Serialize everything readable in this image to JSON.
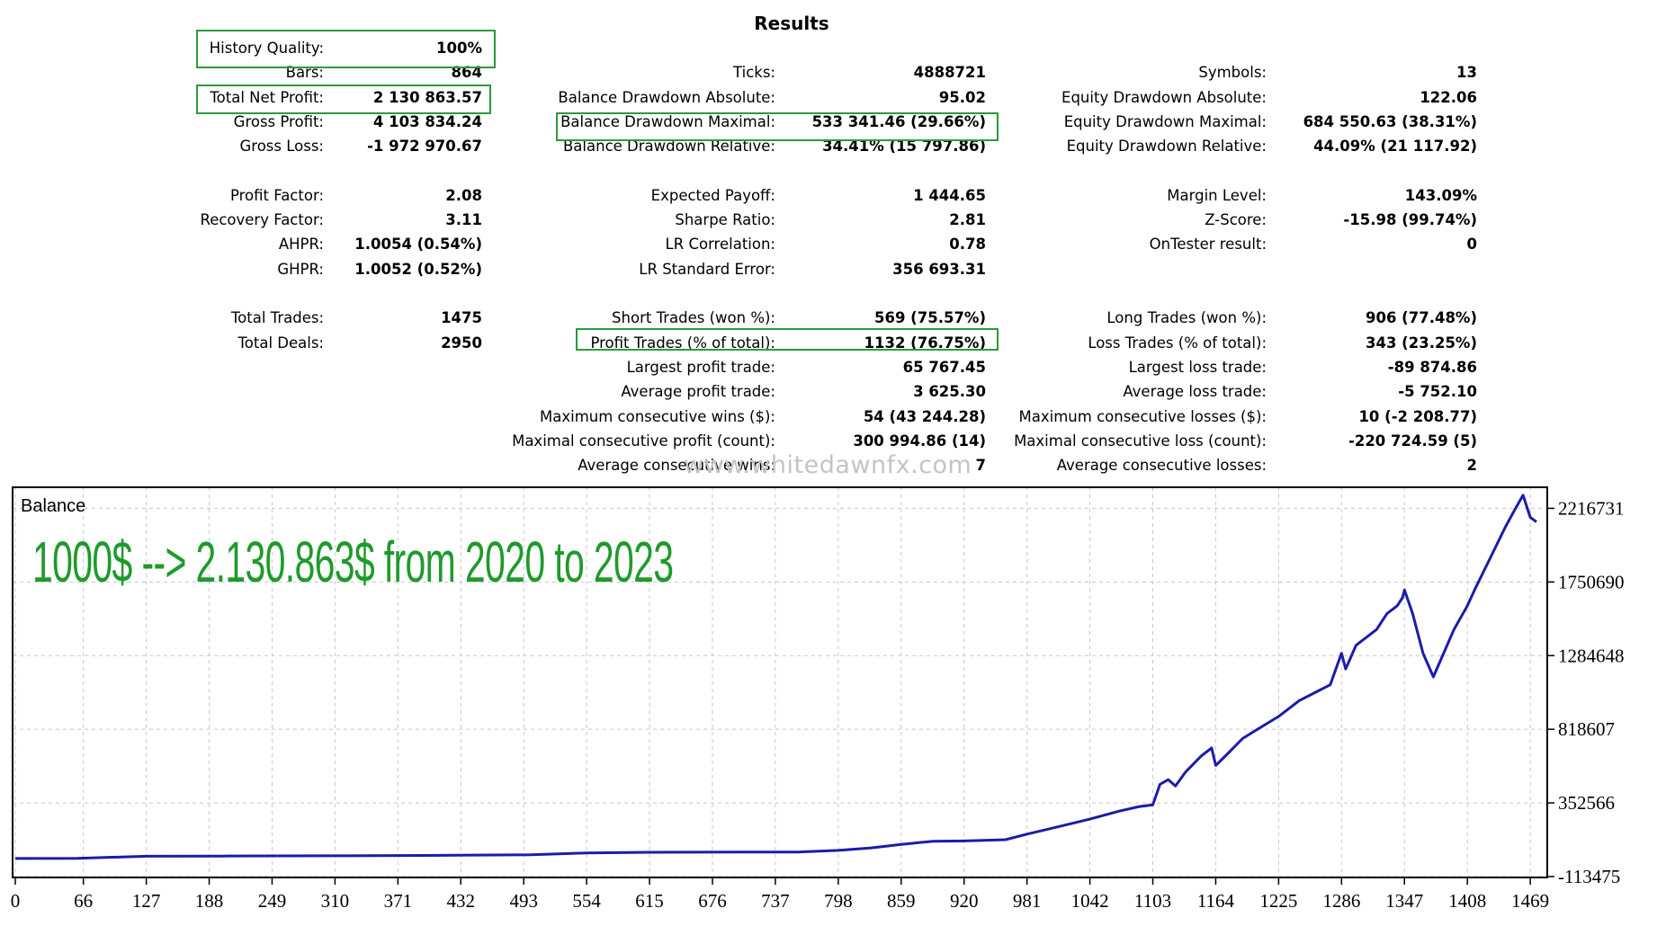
{
  "results": {
    "title": "Results",
    "col1": [
      {
        "label": "History Quality:",
        "value": "100%",
        "highlight": true
      },
      {
        "label": "Bars:",
        "value": "864"
      },
      {
        "label": "Total Net Profit:",
        "value": "2 130 863.57",
        "highlight": true
      },
      {
        "label": "Gross Profit:",
        "value": "4 103 834.24"
      },
      {
        "label": "Gross Loss:",
        "value": "-1 972 970.67"
      },
      {
        "label": "",
        "value": ""
      },
      {
        "label": "Profit Factor:",
        "value": "2.08"
      },
      {
        "label": "Recovery Factor:",
        "value": "3.11"
      },
      {
        "label": "AHPR:",
        "value": "1.0054 (0.54%)"
      },
      {
        "label": "GHPR:",
        "value": "1.0052 (0.52%)"
      },
      {
        "label": "",
        "value": ""
      },
      {
        "label": "Total Trades:",
        "value": "1475"
      },
      {
        "label": "Total Deals:",
        "value": "2950"
      }
    ],
    "col2": [
      {
        "label": "",
        "value": ""
      },
      {
        "label": "Ticks:",
        "value": "4888721"
      },
      {
        "label": "Balance Drawdown Absolute:",
        "value": "95.02"
      },
      {
        "label": "Balance Drawdown Maximal:",
        "value": "533 341.46 (29.66%)",
        "highlight": true
      },
      {
        "label": "Balance Drawdown Relative:",
        "value": "34.41% (15 797.86)"
      },
      {
        "label": "",
        "value": ""
      },
      {
        "label": "Expected Payoff:",
        "value": "1 444.65"
      },
      {
        "label": "Sharpe Ratio:",
        "value": "2.81"
      },
      {
        "label": "LR Correlation:",
        "value": "0.78"
      },
      {
        "label": "LR Standard Error:",
        "value": "356 693.31"
      },
      {
        "label": "",
        "value": ""
      },
      {
        "label": "Short Trades (won %):",
        "value": "569 (75.57%)"
      },
      {
        "label": "Profit Trades (% of total):",
        "value": "1132 (76.75%)",
        "highlight": true
      },
      {
        "label": "Largest profit trade:",
        "value": "65 767.45"
      },
      {
        "label": "Average profit trade:",
        "value": "3 625.30"
      },
      {
        "label": "Maximum consecutive wins ($):",
        "value": "54 (43 244.28)"
      },
      {
        "label": "Maximal consecutive profit (count):",
        "value": "300 994.86 (14)"
      },
      {
        "label": "Average consecutive wins:",
        "value": "7"
      }
    ],
    "col3": [
      {
        "label": "",
        "value": ""
      },
      {
        "label": "Symbols:",
        "value": "13"
      },
      {
        "label": "Equity Drawdown Absolute:",
        "value": "122.06"
      },
      {
        "label": "Equity Drawdown Maximal:",
        "value": "684 550.63 (38.31%)"
      },
      {
        "label": "Equity Drawdown Relative:",
        "value": "44.09% (21 117.92)"
      },
      {
        "label": "",
        "value": ""
      },
      {
        "label": "Margin Level:",
        "value": "143.09%"
      },
      {
        "label": "Z-Score:",
        "value": "-15.98 (99.74%)"
      },
      {
        "label": "OnTester result:",
        "value": "0"
      },
      {
        "label": "",
        "value": ""
      },
      {
        "label": "",
        "value": ""
      },
      {
        "label": "Long Trades (won %):",
        "value": "906 (77.48%)"
      },
      {
        "label": "Loss Trades (% of total):",
        "value": "343 (23.25%)"
      },
      {
        "label": "Largest loss trade:",
        "value": "-89 874.86"
      },
      {
        "label": "Average loss trade:",
        "value": "-5 752.10"
      },
      {
        "label": "Maximum consecutive losses ($):",
        "value": "10 (-2 208.77)"
      },
      {
        "label": "Maximal consecutive loss (count):",
        "value": "-220 724.59 (5)"
      },
      {
        "label": "Average consecutive losses:",
        "value": "2"
      }
    ]
  },
  "watermark": "www.whitedawnfx.com",
  "overlay_text": "1000$ --> 2.130.863$ from 2020 to 2023",
  "colors": {
    "highlight_box": "#2c9a3c",
    "overlay_text": "#1f9a2c",
    "balance_line": "#1c1ca8",
    "grid": "#c8c8c8"
  },
  "chart_data": {
    "type": "line",
    "title": "Balance",
    "xlabel": "",
    "ylabel": "",
    "x_ticks": [
      0,
      66,
      127,
      188,
      249,
      310,
      371,
      432,
      493,
      554,
      615,
      676,
      737,
      798,
      859,
      920,
      981,
      1042,
      1103,
      1164,
      1225,
      1286,
      1347,
      1408,
      1469
    ],
    "y_ticks": [
      -113475,
      352566,
      818607,
      1284648,
      1750690,
      2216731
    ],
    "xlim": [
      0,
      1475
    ],
    "ylim": [
      -113475,
      2350000
    ],
    "grid": true,
    "series": [
      {
        "x": [
          0,
          60,
          127,
          200,
          300,
          400,
          500,
          554,
          615,
          700,
          760,
          798,
          830,
          859,
          890,
          920,
          960,
          981,
          1010,
          1042,
          1070,
          1090,
          1103,
          1110,
          1118,
          1125,
          1135,
          1150,
          1160,
          1164,
          1175,
          1190,
          1200,
          1225,
          1245,
          1260,
          1275,
          1286,
          1290,
          1300,
          1320,
          1330,
          1340,
          1345,
          1347,
          1355,
          1365,
          1375,
          1385,
          1395,
          1408,
          1415,
          1430,
          1445,
          1455,
          1462,
          1469,
          1475
        ],
        "values": [
          1000,
          2000,
          15000,
          16000,
          18000,
          20000,
          24000,
          36000,
          40000,
          42000,
          42000,
          52000,
          68000,
          90000,
          110000,
          112000,
          120000,
          155000,
          200000,
          250000,
          300000,
          330000,
          340000,
          470000,
          500000,
          460000,
          550000,
          650000,
          700000,
          590000,
          660000,
          760000,
          800000,
          900000,
          1000000,
          1050000,
          1100000,
          1300000,
          1200000,
          1350000,
          1450000,
          1550000,
          1600000,
          1650000,
          1700000,
          1550000,
          1300000,
          1150000,
          1300000,
          1450000,
          1600000,
          1700000,
          1900000,
          2100000,
          2220000,
          2300000,
          2160000,
          2130863
        ]
      }
    ]
  }
}
